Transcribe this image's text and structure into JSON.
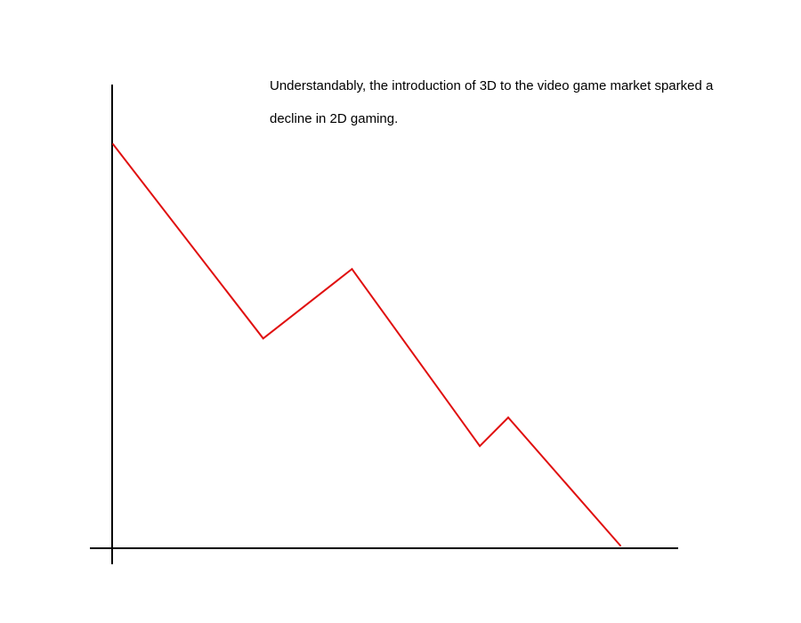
{
  "caption": {
    "line1": "Understandably, the introduction of 3D to the video game market sparked a",
    "line2": "decline in 2D gaming."
  },
  "colors": {
    "line": "#e01010",
    "axis": "#000000",
    "background": "#ffffff"
  },
  "chart_data": {
    "type": "line",
    "title": "",
    "xlabel": "",
    "ylabel": "",
    "grid": false,
    "legend": "none",
    "ticks": "none",
    "xlim": [
      0,
      100
    ],
    "ylim": [
      0,
      100
    ],
    "series": [
      {
        "points": [
          {
            "x": 0,
            "y": 100
          },
          {
            "x": 29.6,
            "y": 51.6
          },
          {
            "x": 47.1,
            "y": 68.9
          },
          {
            "x": 72.3,
            "y": 24.8
          },
          {
            "x": 77.9,
            "y": 31.9
          },
          {
            "x": 100,
            "y": 0
          }
        ]
      }
    ]
  }
}
